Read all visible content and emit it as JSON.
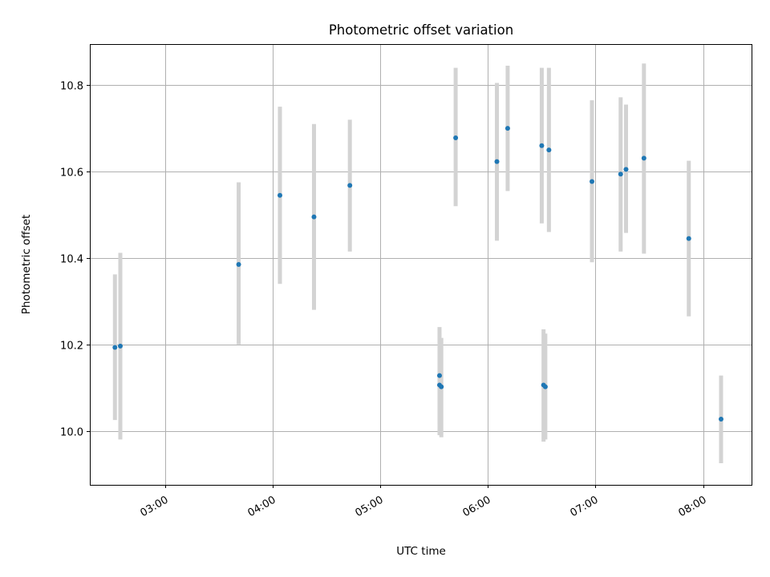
{
  "chart_data": {
    "type": "scatter",
    "title": "Photometric offset variation",
    "xlabel": "UTC time",
    "ylabel": "Photometric offset",
    "x_axis_type": "time",
    "xlim": [
      "02:18",
      "08:27"
    ],
    "ylim": [
      9.875,
      10.895
    ],
    "x_ticks": [
      "03:00",
      "04:00",
      "05:00",
      "06:00",
      "07:00",
      "08:00"
    ],
    "y_ticks": [
      10.0,
      10.2,
      10.4,
      10.6,
      10.8
    ],
    "y_tick_labels": [
      "10.0",
      "10.2",
      "10.4",
      "10.6",
      "10.8"
    ],
    "grid": true,
    "legend": "none",
    "point_color": "#1f77b4",
    "errorbar_color": "#d3d3d3",
    "points": [
      {
        "x": "02:32",
        "y": 10.193,
        "low": 10.025,
        "high": 10.362
      },
      {
        "x": "02:35",
        "y": 10.196,
        "low": 9.98,
        "high": 10.412
      },
      {
        "x": "03:41",
        "y": 10.385,
        "low": 10.2,
        "high": 10.575
      },
      {
        "x": "04:04",
        "y": 10.545,
        "low": 10.34,
        "high": 10.75
      },
      {
        "x": "04:23",
        "y": 10.495,
        "low": 10.28,
        "high": 10.71
      },
      {
        "x": "04:43",
        "y": 10.568,
        "low": 10.415,
        "high": 10.72
      },
      {
        "x": "05:33",
        "y": 10.128,
        "low": 10.015,
        "high": 10.24
      },
      {
        "x": "05:33",
        "y": 10.106,
        "low": 9.99,
        "high": 10.225
      },
      {
        "x": "05:34",
        "y": 10.102,
        "low": 9.985,
        "high": 10.215
      },
      {
        "x": "05:42",
        "y": 10.678,
        "low": 10.52,
        "high": 10.84
      },
      {
        "x": "06:05",
        "y": 10.623,
        "low": 10.44,
        "high": 10.805
      },
      {
        "x": "06:11",
        "y": 10.7,
        "low": 10.555,
        "high": 10.845
      },
      {
        "x": "06:30",
        "y": 10.66,
        "low": 10.48,
        "high": 10.84
      },
      {
        "x": "06:31",
        "y": 10.106,
        "low": 9.975,
        "high": 10.235
      },
      {
        "x": "06:32",
        "y": 10.102,
        "low": 9.98,
        "high": 10.225
      },
      {
        "x": "06:34",
        "y": 10.65,
        "low": 10.46,
        "high": 10.84
      },
      {
        "x": "06:58",
        "y": 10.577,
        "low": 10.39,
        "high": 10.765
      },
      {
        "x": "07:14",
        "y": 10.594,
        "low": 10.415,
        "high": 10.772
      },
      {
        "x": "07:17",
        "y": 10.605,
        "low": 10.458,
        "high": 10.755
      },
      {
        "x": "07:27",
        "y": 10.631,
        "low": 10.41,
        "high": 10.85
      },
      {
        "x": "07:52",
        "y": 10.445,
        "low": 10.265,
        "high": 10.625
      },
      {
        "x": "08:10",
        "y": 10.027,
        "low": 9.925,
        "high": 10.128
      }
    ]
  }
}
